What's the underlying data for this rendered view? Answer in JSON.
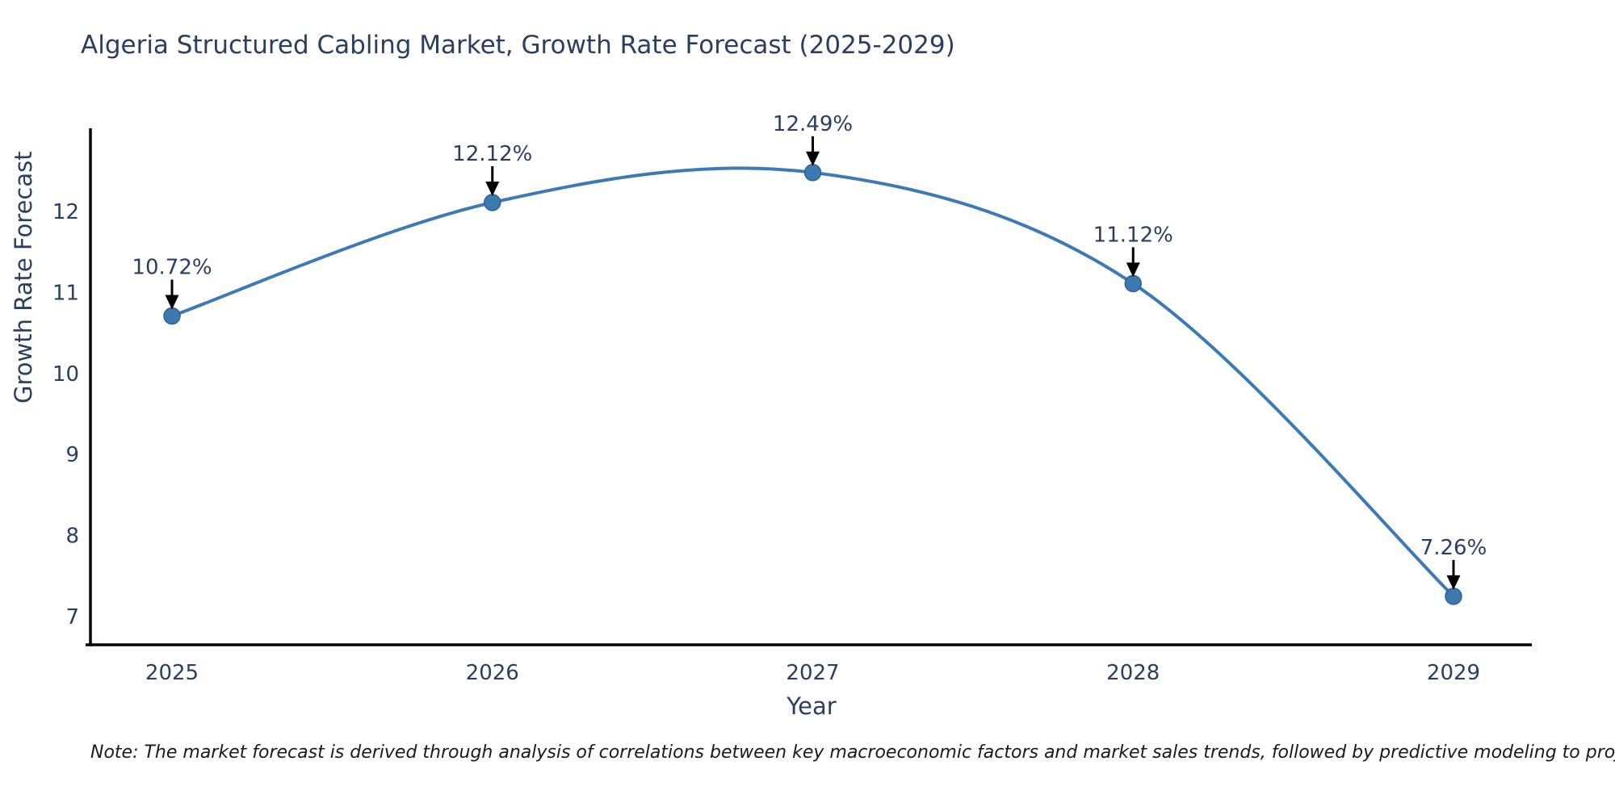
{
  "chart_data": {
    "type": "line",
    "title": "Algeria Structured Cabling Market, Growth Rate Forecast (2025-2029)",
    "xlabel": "Year",
    "ylabel": "Growth Rate Forecast",
    "x": [
      2025,
      2026,
      2027,
      2028,
      2029
    ],
    "values": [
      10.72,
      12.12,
      12.49,
      11.12,
      7.26
    ],
    "point_labels": [
      "10.72%",
      "12.12%",
      "12.49%",
      "11.12%",
      "7.26%"
    ],
    "x_tick_labels": [
      "2025",
      "2026",
      "2027",
      "2028",
      "2029"
    ],
    "y_ticks": [
      7,
      8,
      9,
      10,
      11,
      12
    ],
    "ylim": [
      6.67,
      13.05
    ],
    "line_shape": "spline",
    "grid": false,
    "legend": "none",
    "colors": {
      "line": "#3d7ab5",
      "marker_fill": "#3c79af",
      "marker_stroke": "#2d6396",
      "axis_line": "#000000",
      "text": "#2a3f5f",
      "annotation_arrow": "#000000"
    }
  },
  "note": "Note: The market forecast is derived through analysis of correlations between key macroeconomic factors and market sales trends, followed by predictive modeling to project future sales"
}
